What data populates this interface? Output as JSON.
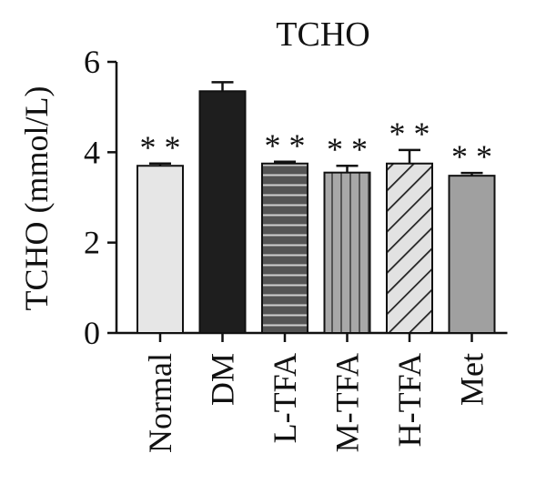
{
  "chart_data": {
    "type": "bar",
    "title": "TCHO",
    "xlabel": "",
    "ylabel": "TCHO (mmol/L)",
    "ylim": [
      0,
      6
    ],
    "yticks": [
      0,
      2,
      4,
      6
    ],
    "categories": [
      "Normal",
      "DM",
      "L-TFA",
      "M-TFA",
      "H-TFA",
      "Met"
    ],
    "values": [
      3.7,
      5.35,
      3.75,
      3.55,
      3.75,
      3.48
    ],
    "errors": [
      0.05,
      0.2,
      0.04,
      0.15,
      0.3,
      0.06
    ],
    "significance": [
      "* *",
      "",
      "* *",
      "* *",
      "* *",
      "* *"
    ],
    "fills": [
      "#e6e6e6",
      "#1e1e1e",
      "#555555",
      "#a8a8a8",
      "#e2e2e2",
      "#a0a0a0"
    ],
    "patterns": [
      "solid",
      "solid",
      "horizontal-lines",
      "vertical-lines",
      "diagonal-lines",
      "solid"
    ],
    "grid": false,
    "legend": "none"
  }
}
